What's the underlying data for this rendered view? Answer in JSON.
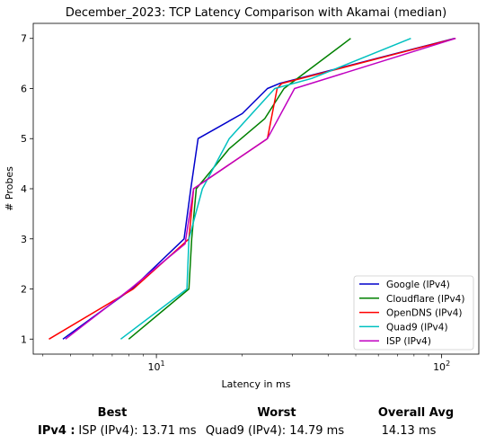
{
  "chart_data": {
    "type": "line",
    "title": "December_2023: TCP Latency Comparison with Akamai (median)",
    "xlabel": "Latency in ms",
    "ylabel": "# Probes",
    "xscale": "log",
    "xlim": [
      3.7,
      135
    ],
    "ylim": [
      0.7,
      7.3
    ],
    "yticks": [
      "1",
      "2",
      "3",
      "4",
      "5",
      "6",
      "7"
    ],
    "xticks": [
      {
        "value": 10,
        "base": "10",
        "exp": "1"
      },
      {
        "value": 100,
        "base": "10",
        "exp": "2"
      }
    ],
    "legend_position": "lower right",
    "grid": false,
    "series": [
      {
        "name": "Google (IPv4)",
        "color": "#0000cc",
        "x": [
          4.7,
          8.2,
          12.5,
          13.2,
          14.0,
          20.0,
          24.5,
          27.0,
          111.0
        ],
        "y": [
          1,
          2,
          3,
          4,
          5,
          5.5,
          6,
          6.1,
          7
        ]
      },
      {
        "name": "Cloudflare (IPv4)",
        "color": "#008000",
        "x": [
          8.0,
          13.0,
          13.3,
          13.8,
          18.0,
          24.0,
          28.0,
          48.0
        ],
        "y": [
          1,
          2,
          3,
          4,
          4.8,
          5.4,
          6,
          7
        ]
      },
      {
        "name": "OpenDNS (IPv4)",
        "color": "#ff0000",
        "x": [
          4.2,
          8.3,
          13.0,
          13.5,
          24.5,
          26.5,
          27.5,
          112.0
        ],
        "y": [
          1,
          2,
          3,
          4,
          5,
          6,
          6.1,
          7
        ]
      },
      {
        "name": "Quad9 (IPv4)",
        "color": "#00c0c0",
        "x": [
          7.5,
          12.8,
          13.0,
          14.5,
          18.0,
          26.0,
          35.0,
          78.0
        ],
        "y": [
          1,
          2,
          3,
          4,
          5,
          6,
          6.2,
          7
        ]
      },
      {
        "name": "ISP (IPv4)",
        "color": "#c000c0",
        "x": [
          4.8,
          8.1,
          12.6,
          13.5,
          24.5,
          30.5,
          112.0
        ],
        "y": [
          1,
          2,
          2.9,
          4,
          5,
          6,
          7
        ]
      }
    ]
  },
  "summary": {
    "headers": {
      "best": "Best",
      "worst": "Worst",
      "avg": "Overall Avg"
    },
    "row_label": "IPv4 :",
    "best": "ISP (IPv4): 13.71 ms",
    "worst": "Quad9 (IPv4): 14.79 ms",
    "avg": "14.13 ms"
  }
}
